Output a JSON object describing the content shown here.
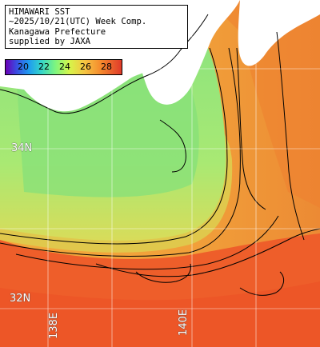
{
  "header": {
    "line1": "HIMAWARI SST",
    "line2": "~2025/10/21(UTC) Week Comp.",
    "line3": "Kanagawa Prefecture",
    "line4": "supplied by JAXA"
  },
  "colorbar": {
    "ticks": [
      "20",
      "22",
      "24",
      "26",
      "28"
    ]
  },
  "geo_labels": {
    "lat_34n": "34N",
    "lat_32n": "32N",
    "lon_138e": "138E",
    "lon_140e": "140E"
  },
  "colors": {
    "land": "#ffffff",
    "coastal_cool": "#7fe07a",
    "mid_warm": "#f0b040",
    "offshore_warm": "#f06a2c",
    "kuroshio": "#ee5a28",
    "grid": "#ffffff",
    "contour": "#000000"
  }
}
